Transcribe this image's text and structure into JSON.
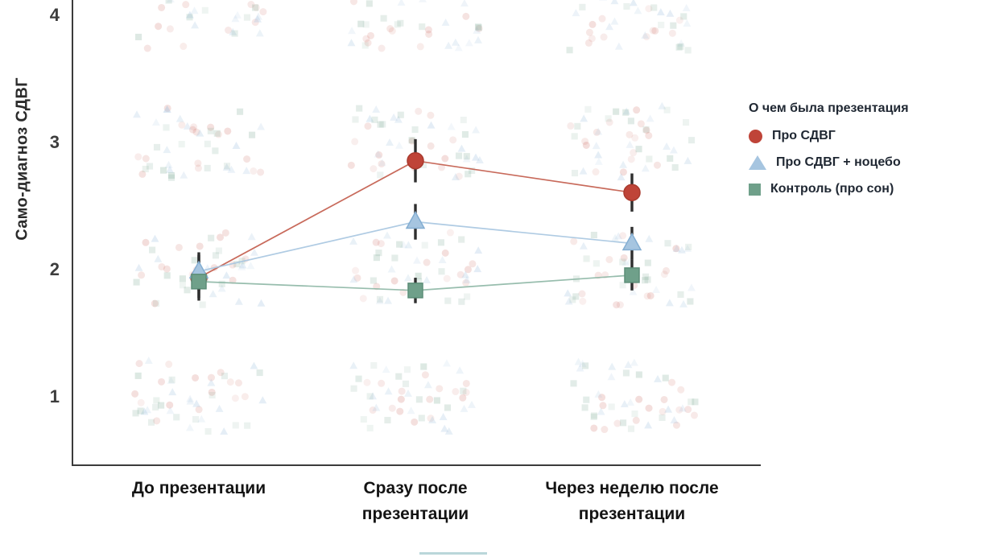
{
  "page": {
    "background": "#ffffff"
  },
  "chart_data": {
    "type": "line",
    "title": "",
    "xlabel": "",
    "ylabel": "Само-диагноз СДВГ",
    "categories": [
      "До презентации",
      "Сразу после\nпрезентации",
      "Через неделю после\nпрезентации"
    ],
    "y_ticks": [
      1,
      2,
      3,
      4
    ],
    "ylim": [
      0.45,
      4.11
    ],
    "grid": false,
    "legend_position": "right",
    "legend": {
      "title": "О чем была презентация"
    },
    "axis_color": "#3b3b3b",
    "error_bar_color": "#2e2e2e",
    "series": [
      {
        "name": "Про СДВГ",
        "marker": "circle",
        "fill": "#bf4438",
        "edge": "#a93a2e",
        "line": "#c25a49",
        "values": [
          1.93,
          2.85,
          2.6
        ],
        "errors": [
          0.18,
          0.17,
          0.15
        ]
      },
      {
        "name": "Про СДВГ + ноцебо",
        "marker": "triangle",
        "fill": "#a6c5e0",
        "edge": "#84aed2",
        "line": "#a6c5e0",
        "values": [
          1.98,
          2.37,
          2.2
        ],
        "errors": [
          0.15,
          0.14,
          0.13
        ]
      },
      {
        "name": "Контроль (про сон)",
        "marker": "square",
        "fill": "#6fa08a",
        "edge": "#5d8e78",
        "line": "#8cb6a4",
        "values": [
          1.9,
          1.83,
          1.95
        ],
        "errors": [
          0.13,
          0.1,
          0.12
        ]
      }
    ],
    "jitter": {
      "description": "faded individual responses clustered at integer scores 1-4 at each timepoint",
      "levels": [
        1,
        2,
        3,
        4
      ],
      "points_per_cluster_per_series": 16,
      "x_spread": 160,
      "y_spread": 90,
      "opacity": {
        "circle": 0.13,
        "triangle": 0.22,
        "square": 0.17
      },
      "seed": 42
    }
  }
}
